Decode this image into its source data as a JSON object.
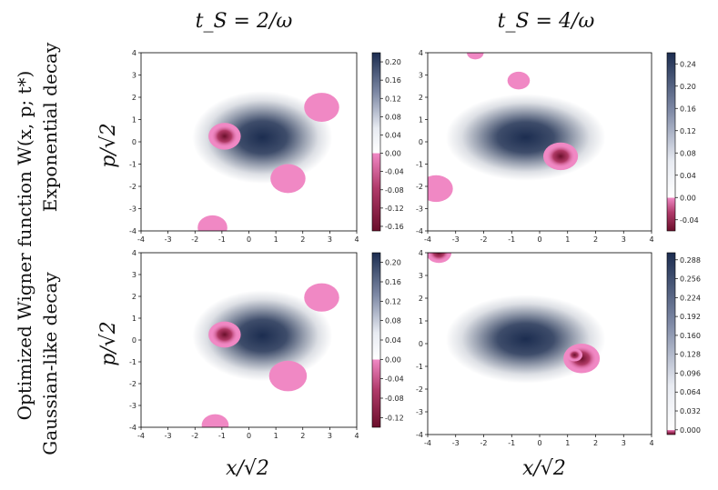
{
  "figure": {
    "col_titles": [
      "t_S = 2/ω",
      "t_S = 4/ω"
    ],
    "y_super_label": "Optimized Wigner function W(x, p; t*)",
    "row_labels": [
      "Exponential decay",
      "Gaussian-like decay"
    ],
    "xlabel": "x/√2",
    "ylabel": "p/√2"
  },
  "colors": {
    "positive": "#1c2d50",
    "negative": "#6b0f2b",
    "light_negative": "#f088c4",
    "zero": "#ffffff"
  },
  "chart_data": [
    {
      "type": "heatmap",
      "panel": "exponential-ts2",
      "xlim": [
        -4,
        4
      ],
      "ylim": [
        -4,
        4
      ],
      "xticks": [
        "-4",
        "-3",
        "-2",
        "-1",
        "0",
        "1",
        "2",
        "3",
        "4"
      ],
      "yticks": [
        "4",
        "3",
        "2",
        "1",
        "0",
        "-1",
        "-2",
        "-3",
        "-4"
      ],
      "colorbar_ticks": [
        "0.20",
        "0.16",
        "0.12",
        "0.08",
        "0.04",
        "0.00",
        "-0.04",
        "-0.08",
        "-0.12",
        "-0.16"
      ],
      "colorbar_range": [
        -0.17,
        0.22
      ],
      "grid": false,
      "features": [
        {
          "x": 0.5,
          "y": 0.2,
          "sigma_x": 1.0,
          "sigma_y": 0.8,
          "value": 0.21
        },
        {
          "x": -0.9,
          "y": 0.25,
          "radius": 0.6,
          "value": -0.16
        },
        {
          "x": 2.7,
          "y": 1.55,
          "radius": 0.65,
          "value": -0.02
        },
        {
          "x": 1.45,
          "y": -1.65,
          "radius": 0.65,
          "value": -0.02
        },
        {
          "x": -1.35,
          "y": -3.85,
          "radius": 0.55,
          "value": -0.02
        }
      ]
    },
    {
      "type": "heatmap",
      "panel": "exponential-ts4",
      "xlim": [
        -4,
        4
      ],
      "ylim": [
        -4,
        4
      ],
      "xticks": [
        "-4",
        "-3",
        "-2",
        "-1",
        "0",
        "1",
        "2",
        "3",
        "4"
      ],
      "yticks": [
        "4",
        "3",
        "2",
        "1",
        "0",
        "-1",
        "-2",
        "-3",
        "-4"
      ],
      "colorbar_ticks": [
        "0.24",
        "0.20",
        "0.16",
        "0.12",
        "0.08",
        "0.04",
        "0.00",
        "-0.04"
      ],
      "colorbar_range": [
        -0.06,
        0.26
      ],
      "grid": false,
      "features": [
        {
          "x": -0.5,
          "y": 0.2,
          "sigma_x": 1.1,
          "sigma_y": 0.75,
          "value": 0.25
        },
        {
          "x": 0.75,
          "y": -0.65,
          "radius": 0.62,
          "value": -0.05
        },
        {
          "x": -0.75,
          "y": 2.75,
          "radius": 0.4,
          "value": -0.01
        },
        {
          "x": -3.7,
          "y": -2.1,
          "radius": 0.6,
          "value": -0.01
        },
        {
          "x": -2.3,
          "y": 4.0,
          "radius": 0.3,
          "value": -0.01
        }
      ]
    },
    {
      "type": "heatmap",
      "panel": "gaussian-ts2",
      "xlim": [
        -4,
        4
      ],
      "ylim": [
        -4,
        4
      ],
      "xticks": [
        "-4",
        "-3",
        "-2",
        "-1",
        "0",
        "1",
        "2",
        "3",
        "4"
      ],
      "yticks": [
        "4",
        "3",
        "2",
        "1",
        "0",
        "-1",
        "-2",
        "-3",
        "-4"
      ],
      "colorbar_ticks": [
        "0.20",
        "0.16",
        "0.12",
        "0.08",
        "0.04",
        "0.00",
        "-0.04",
        "-0.08",
        "-0.12"
      ],
      "colorbar_range": [
        -0.14,
        0.22
      ],
      "grid": false,
      "features": [
        {
          "x": 0.5,
          "y": 0.2,
          "sigma_x": 1.0,
          "sigma_y": 0.8,
          "value": 0.21
        },
        {
          "x": -0.9,
          "y": 0.25,
          "radius": 0.6,
          "value": -0.13
        },
        {
          "x": 2.7,
          "y": 1.95,
          "radius": 0.65,
          "value": -0.02
        },
        {
          "x": 1.45,
          "y": -1.65,
          "radius": 0.7,
          "value": -0.02
        },
        {
          "x": -1.25,
          "y": -3.9,
          "radius": 0.5,
          "value": -0.02
        }
      ]
    },
    {
      "type": "heatmap",
      "panel": "gaussian-ts4",
      "xlim": [
        -4,
        4
      ],
      "ylim": [
        -4,
        4
      ],
      "xticks": [
        "-4",
        "-3",
        "-2",
        "-1",
        "0",
        "1",
        "2",
        "3",
        "4"
      ],
      "yticks": [
        "4",
        "3",
        "2",
        "1",
        "0",
        "-1",
        "-2",
        "-3",
        "-4"
      ],
      "colorbar_ticks": [
        "0.288",
        "0.256",
        "0.224",
        "0.192",
        "0.160",
        "0.128",
        "0.096",
        "0.064",
        "0.032",
        "0.000"
      ],
      "colorbar_range": [
        -0.008,
        0.3
      ],
      "grid": false,
      "features": [
        {
          "x": -0.5,
          "y": 0.2,
          "sigma_x": 1.1,
          "sigma_y": 0.75,
          "value": 0.29
        },
        {
          "x": 1.5,
          "y": -0.65,
          "radius": 0.65,
          "value": -0.005
        },
        {
          "x": 1.25,
          "y": -0.5,
          "radius": 0.28,
          "value": -0.008
        },
        {
          "x": -3.6,
          "y": 4.0,
          "radius": 0.45,
          "value": -0.005
        }
      ]
    }
  ]
}
